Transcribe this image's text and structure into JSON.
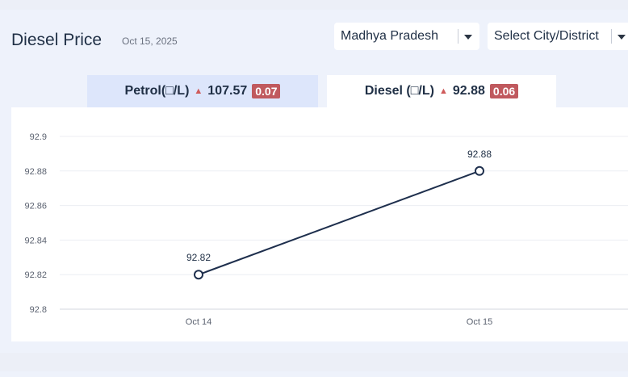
{
  "header": {
    "title": "Diesel Price",
    "date": "Oct 15, 2025"
  },
  "selects": {
    "state": "Madhya Pradesh",
    "city": "Select City/District"
  },
  "tabs": [
    {
      "label": "Petrol(□/L)",
      "price": "107.57",
      "change": "0.07"
    },
    {
      "label": "Diesel (□/L)",
      "price": "92.88",
      "change": "0.06"
    }
  ],
  "chart_data": {
    "type": "line",
    "categories": [
      "Oct 14",
      "Oct 15"
    ],
    "values": [
      92.82,
      92.88
    ],
    "data_labels": [
      "92.82",
      "92.88"
    ],
    "ylim": [
      92.8,
      92.9
    ],
    "yticks": [
      "92.8",
      "92.82",
      "92.84",
      "92.86",
      "92.88",
      "92.9"
    ],
    "grid": true,
    "line_color": "#1e2f4d"
  },
  "colors": {
    "accent_up": "#c0595e",
    "text": "#1f2f45"
  }
}
